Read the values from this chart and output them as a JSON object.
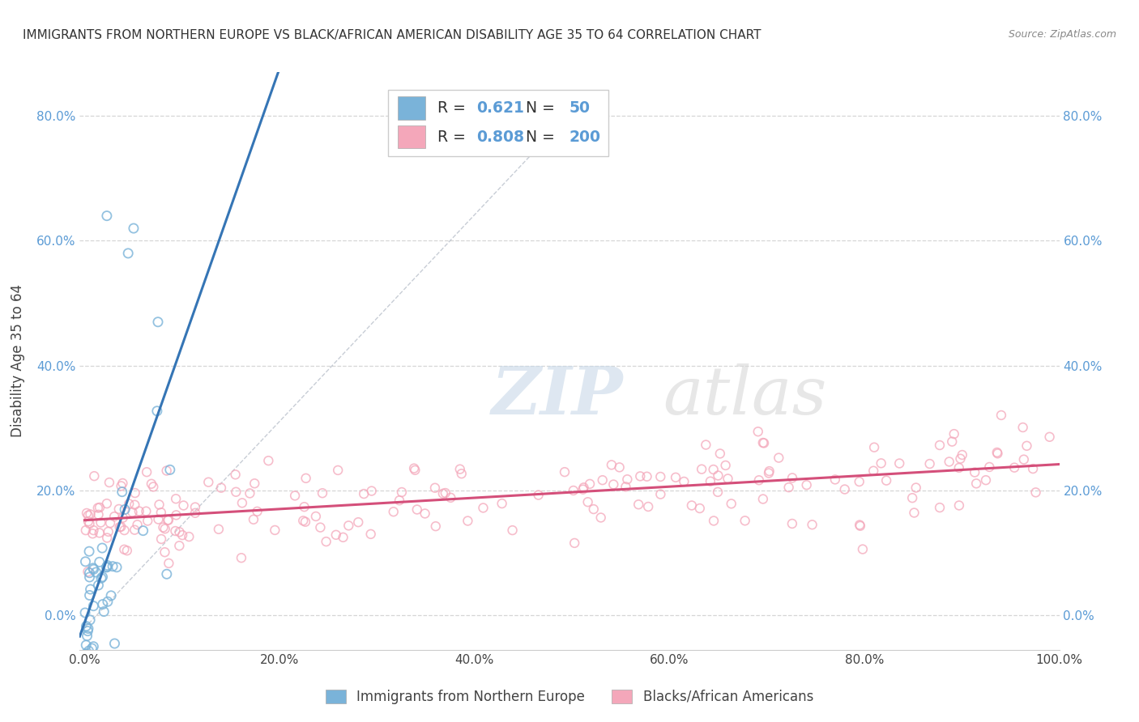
{
  "title": "IMMIGRANTS FROM NORTHERN EUROPE VS BLACK/AFRICAN AMERICAN DISABILITY AGE 35 TO 64 CORRELATION CHART",
  "source": "Source: ZipAtlas.com",
  "ylabel": "Disability Age 35 to 64",
  "watermark_zip": "ZIP",
  "watermark_atlas": "atlas",
  "blue_R": 0.621,
  "blue_N": 50,
  "pink_R": 0.808,
  "pink_N": 200,
  "blue_color": "#7ab3d9",
  "pink_color": "#f4a7ba",
  "blue_line_color": "#3575b5",
  "pink_line_color": "#d44f7a",
  "legend1": "Immigrants from Northern Europe",
  "legend2": "Blacks/African Americans",
  "xlim": [
    -0.005,
    1.0
  ],
  "ylim": [
    -0.055,
    0.87
  ],
  "xticks": [
    0.0,
    0.2,
    0.4,
    0.6,
    0.8,
    1.0
  ],
  "yticks": [
    0.0,
    0.2,
    0.4,
    0.6,
    0.8
  ],
  "ytick_labels": [
    "0.0%",
    "20.0%",
    "40.0%",
    "60.0%",
    "80.0%"
  ],
  "xtick_labels": [
    "0.0%",
    "20.0%",
    "40.0%",
    "60.0%",
    "80.0%",
    "100.0%"
  ],
  "background_color": "#ffffff",
  "grid_color": "#cccccc",
  "tick_color": "#5b9bd5",
  "seed": 42
}
